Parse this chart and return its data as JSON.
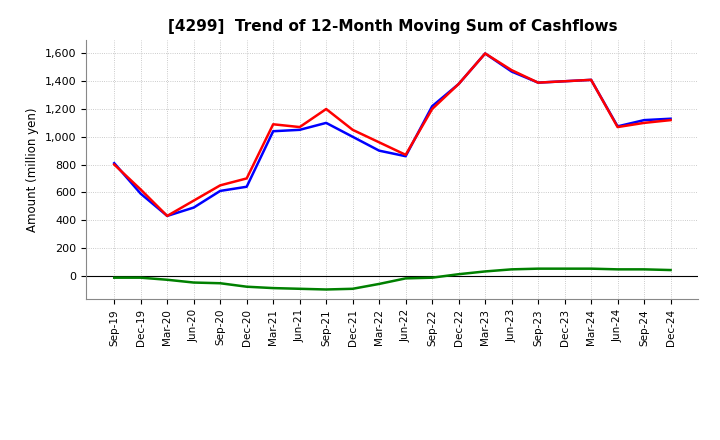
{
  "title": "[4299]  Trend of 12-Month Moving Sum of Cashflows",
  "ylabel": "Amount (million yen)",
  "x_labels": [
    "Sep-19",
    "Dec-19",
    "Mar-20",
    "Jun-20",
    "Sep-20",
    "Dec-20",
    "Mar-21",
    "Jun-21",
    "Sep-21",
    "Dec-21",
    "Mar-22",
    "Jun-22",
    "Sep-22",
    "Dec-22",
    "Mar-23",
    "Jun-23",
    "Sep-23",
    "Dec-23",
    "Mar-24",
    "Jun-24",
    "Sep-24",
    "Dec-24"
  ],
  "operating_cashflow": [
    800,
    620,
    430,
    540,
    650,
    700,
    1090,
    1070,
    1200,
    1050,
    960,
    870,
    1200,
    1380,
    1600,
    1480,
    1390,
    1400,
    1410,
    1070,
    1100,
    1120
  ],
  "investing_cashflow": [
    -15,
    -15,
    -30,
    -50,
    -55,
    -80,
    -90,
    -95,
    -100,
    -95,
    -60,
    -20,
    -15,
    10,
    30,
    45,
    50,
    50,
    50,
    45,
    45,
    40
  ],
  "free_cashflow": [
    810,
    590,
    430,
    490,
    610,
    640,
    1040,
    1050,
    1100,
    1000,
    900,
    860,
    1220,
    1380,
    1600,
    1470,
    1390,
    1400,
    1410,
    1075,
    1120,
    1130
  ],
  "operating_color": "#FF0000",
  "investing_color": "#008000",
  "free_color": "#0000FF",
  "ylim": [
    -170,
    1700
  ],
  "yticks": [
    0,
    200,
    400,
    600,
    800,
    1000,
    1200,
    1400,
    1600
  ],
  "background_color": "#FFFFFF",
  "grid_color": "#BBBBBB",
  "line_width": 1.8
}
